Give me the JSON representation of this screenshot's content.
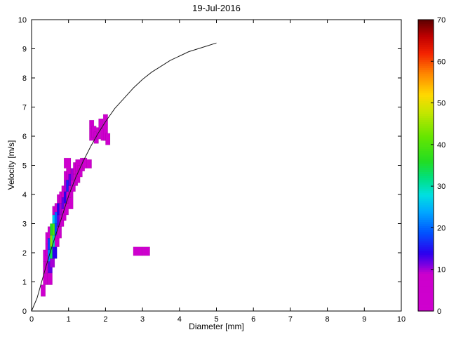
{
  "title": "19-Jul-2016",
  "xlabel": "Diameter [mm]",
  "ylabel": "Velocity [m/s]",
  "chart_data": {
    "type": "heatmap",
    "xlim": [
      0,
      10
    ],
    "ylim": [
      0,
      10
    ],
    "x_ticks": [
      0,
      1,
      2,
      3,
      4,
      5,
      6,
      7,
      8,
      9,
      10
    ],
    "y_ticks": [
      0,
      1,
      2,
      3,
      4,
      5,
      6,
      7,
      8,
      9,
      10
    ],
    "grid": false,
    "colorbar": {
      "min": 0,
      "max": 70,
      "ticks": [
        0,
        10,
        20,
        30,
        40,
        50,
        60,
        70
      ],
      "position": "right"
    },
    "colormap": [
      [
        0,
        "#cf00cf"
      ],
      [
        9,
        "#cc00cc"
      ],
      [
        11,
        "#8000e0"
      ],
      [
        14,
        "#2a00ee"
      ],
      [
        19,
        "#0055ff"
      ],
      [
        24,
        "#00aaff"
      ],
      [
        28,
        "#00e0e0"
      ],
      [
        32,
        "#00e080"
      ],
      [
        36,
        "#22dd22"
      ],
      [
        42,
        "#66e600"
      ],
      [
        48,
        "#c8e600"
      ],
      [
        52,
        "#ffd900"
      ],
      [
        57,
        "#ff8800"
      ],
      [
        62,
        "#f32200"
      ],
      [
        66,
        "#c00000"
      ],
      [
        70,
        "#5e0000"
      ]
    ],
    "cells": [
      [
        0.25,
        0.375,
        0.5,
        0.9,
        2
      ],
      [
        0.3125,
        0.4375,
        0.9,
        1.3,
        4
      ],
      [
        0.3125,
        0.4375,
        1.3,
        1.7,
        5
      ],
      [
        0.375,
        0.5,
        1.5,
        1.9,
        4
      ],
      [
        0.3125,
        0.4375,
        1.7,
        2.1,
        3
      ],
      [
        0.375,
        0.5,
        1.9,
        2.3,
        6
      ],
      [
        0.375,
        0.5,
        2.3,
        2.7,
        4
      ],
      [
        0.4375,
        0.5625,
        0.9,
        1.3,
        5
      ],
      [
        0.4375,
        0.5625,
        1.3,
        1.7,
        12
      ],
      [
        0.4375,
        0.5625,
        1.7,
        2.1,
        22
      ],
      [
        0.4375,
        0.5625,
        2.1,
        2.5,
        18
      ],
      [
        0.4375,
        0.5625,
        2.5,
        2.9,
        7
      ],
      [
        0.5,
        0.625,
        1.5,
        1.8,
        10
      ],
      [
        0.5,
        0.625,
        1.8,
        2.2,
        34
      ],
      [
        0.5,
        0.625,
        2.2,
        2.6,
        44
      ],
      [
        0.5,
        0.625,
        2.6,
        3.0,
        36
      ],
      [
        0.5625,
        0.6875,
        1.8,
        2.2,
        14
      ],
      [
        0.5625,
        0.6875,
        2.2,
        2.6,
        30
      ],
      [
        0.5625,
        0.6875,
        2.6,
        3.0,
        40
      ],
      [
        0.5625,
        0.6875,
        3.0,
        3.3,
        26
      ],
      [
        0.5625,
        0.6875,
        3.3,
        3.6,
        9
      ],
      [
        0.625,
        0.75,
        2.2,
        2.6,
        8
      ],
      [
        0.625,
        0.75,
        2.6,
        3.0,
        18
      ],
      [
        0.625,
        0.75,
        3.0,
        3.4,
        20
      ],
      [
        0.625,
        0.75,
        3.4,
        3.7,
        8
      ],
      [
        0.6875,
        0.8125,
        2.5,
        2.9,
        5
      ],
      [
        0.6875,
        0.8125,
        2.9,
        3.3,
        12
      ],
      [
        0.6875,
        0.8125,
        3.3,
        3.7,
        14
      ],
      [
        0.6875,
        0.8125,
        3.7,
        4.0,
        6
      ],
      [
        0.75,
        0.875,
        2.9,
        3.3,
        5
      ],
      [
        0.75,
        0.875,
        3.3,
        3.7,
        10
      ],
      [
        0.75,
        0.875,
        3.7,
        4.1,
        8
      ],
      [
        0.8125,
        0.9375,
        3.1,
        3.5,
        4
      ],
      [
        0.8125,
        0.9375,
        3.5,
        3.9,
        12
      ],
      [
        0.8125,
        0.9375,
        3.9,
        4.3,
        9
      ],
      [
        0.875,
        1.0,
        3.3,
        3.7,
        4
      ],
      [
        0.875,
        1.0,
        3.7,
        4.1,
        14
      ],
      [
        0.875,
        1.0,
        4.1,
        4.5,
        10
      ],
      [
        0.875,
        1.0,
        4.5,
        4.8,
        4
      ],
      [
        0.875,
        1.0625,
        4.9,
        5.25,
        3
      ],
      [
        0.9375,
        1.0625,
        3.7,
        4.1,
        5
      ],
      [
        0.9375,
        1.0625,
        4.1,
        4.5,
        16
      ],
      [
        0.9375,
        1.0625,
        4.5,
        4.9,
        8
      ],
      [
        1.0,
        1.125,
        3.5,
        3.9,
        3
      ],
      [
        1.0,
        1.125,
        3.9,
        4.3,
        8
      ],
      [
        1.0,
        1.125,
        4.3,
        4.7,
        12
      ],
      [
        1.0625,
        1.1875,
        4.1,
        4.5,
        6
      ],
      [
        1.0625,
        1.1875,
        4.5,
        4.9,
        10
      ],
      [
        1.125,
        1.25,
        4.3,
        4.7,
        5
      ],
      [
        1.125,
        1.25,
        4.7,
        5.1,
        7
      ],
      [
        1.1875,
        1.3125,
        4.4,
        4.8,
        4
      ],
      [
        1.1875,
        1.3125,
        4.8,
        5.2,
        5
      ],
      [
        1.25,
        1.375,
        4.6,
        5.0,
        4
      ],
      [
        1.3125,
        1.4375,
        4.8,
        5.25,
        4
      ],
      [
        1.375,
        1.5,
        4.9,
        5.25,
        3
      ],
      [
        1.5,
        1.625,
        4.9,
        5.2,
        3
      ],
      [
        1.5625,
        1.6875,
        5.85,
        6.25,
        3
      ],
      [
        1.5625,
        1.6875,
        6.25,
        6.55,
        2
      ],
      [
        1.625,
        1.75,
        5.95,
        6.35,
        4
      ],
      [
        1.6875,
        1.8125,
        5.75,
        6.15,
        3
      ],
      [
        1.75,
        1.875,
        5.9,
        6.3,
        4
      ],
      [
        1.8125,
        1.9375,
        6.2,
        6.6,
        3
      ],
      [
        1.875,
        2.0,
        5.85,
        6.25,
        3
      ],
      [
        1.9375,
        2.0625,
        5.85,
        6.75,
        3
      ],
      [
        2.0,
        2.125,
        5.7,
        6.1,
        2
      ],
      [
        2.75,
        3.0,
        1.9,
        2.2,
        4
      ],
      [
        3.0,
        3.2,
        1.9,
        2.2,
        3
      ]
    ],
    "curve": {
      "name": "terminal-velocity-curve",
      "color": "#1a1a1a",
      "points": [
        [
          0,
          0
        ],
        [
          0.15,
          0.45
        ],
        [
          0.25,
          0.9
        ],
        [
          0.35,
          1.35
        ],
        [
          0.5,
          2.0
        ],
        [
          0.65,
          2.6
        ],
        [
          0.8,
          3.15
        ],
        [
          1.0,
          3.95
        ],
        [
          1.2,
          4.6
        ],
        [
          1.4,
          5.15
        ],
        [
          1.6,
          5.65
        ],
        [
          1.8,
          6.1
        ],
        [
          2.0,
          6.5
        ],
        [
          2.25,
          6.95
        ],
        [
          2.5,
          7.3
        ],
        [
          2.75,
          7.65
        ],
        [
          3.0,
          7.95
        ],
        [
          3.25,
          8.2
        ],
        [
          3.5,
          8.4
        ],
        [
          3.75,
          8.6
        ],
        [
          4.0,
          8.75
        ],
        [
          4.25,
          8.9
        ],
        [
          4.5,
          9.0
        ],
        [
          4.75,
          9.1
        ],
        [
          5.0,
          9.2
        ]
      ]
    }
  }
}
